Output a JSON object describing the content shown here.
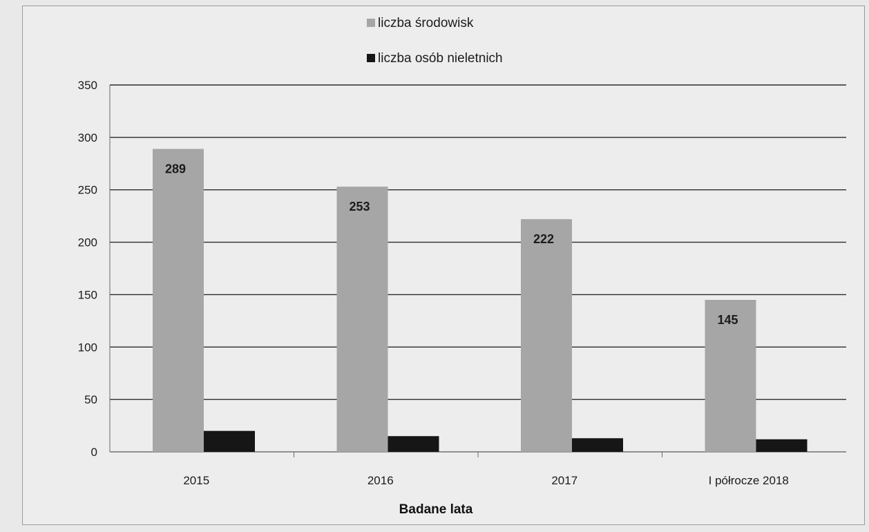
{
  "chart_data": {
    "type": "bar",
    "title": "",
    "xlabel": "Badane lata",
    "ylabel": "",
    "categories": [
      "2015",
      "2016",
      "2017",
      "I półrocze 2018"
    ],
    "series": [
      {
        "name": "liczba środowisk",
        "color": "#a6a6a6",
        "values": [
          289,
          253,
          222,
          145
        ],
        "show_labels": true
      },
      {
        "name": "liczba osób nieletnich",
        "color": "#161616",
        "values": [
          20,
          15,
          13,
          12
        ],
        "show_labels": false
      }
    ],
    "ylim": [
      0,
      350
    ],
    "yticks": [
      "0",
      "50",
      "100",
      "150",
      "200",
      "250",
      "300",
      "350"
    ],
    "grid": true,
    "legend": "top-center"
  }
}
